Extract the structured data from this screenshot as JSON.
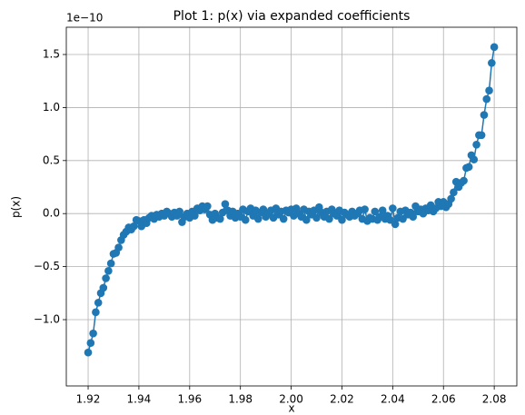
{
  "chart_data": {
    "type": "line",
    "title": "Plot 1: p(x) via expanded coefficients",
    "offset_label": "1e−10",
    "xlabel": "x",
    "ylabel": "p(x)",
    "x": [
      1.92,
      1.921,
      1.922,
      1.923,
      1.924,
      1.925,
      1.926,
      1.927,
      1.928,
      1.929,
      1.93,
      1.931,
      1.932,
      1.933,
      1.934,
      1.935,
      1.936,
      1.937,
      1.938,
      1.939,
      1.94,
      1.941,
      1.942,
      1.943,
      1.944,
      1.945,
      1.946,
      1.947,
      1.948,
      1.949,
      1.95,
      1.951,
      1.952,
      1.953,
      1.954,
      1.955,
      1.956,
      1.957,
      1.958,
      1.959,
      1.96,
      1.961,
      1.962,
      1.963,
      1.964,
      1.965,
      1.966,
      1.967,
      1.968,
      1.969,
      1.97,
      1.971,
      1.972,
      1.973,
      1.974,
      1.975,
      1.976,
      1.977,
      1.978,
      1.979,
      1.98,
      1.981,
      1.982,
      1.983,
      1.984,
      1.985,
      1.986,
      1.987,
      1.988,
      1.989,
      1.99,
      1.991,
      1.992,
      1.993,
      1.994,
      1.995,
      1.996,
      1.997,
      1.998,
      1.999,
      2.0,
      2.001,
      2.002,
      2.003,
      2.004,
      2.005,
      2.006,
      2.007,
      2.008,
      2.009,
      2.01,
      2.011,
      2.012,
      2.013,
      2.014,
      2.015,
      2.016,
      2.017,
      2.018,
      2.019,
      2.02,
      2.021,
      2.022,
      2.023,
      2.024,
      2.025,
      2.026,
      2.027,
      2.028,
      2.029,
      2.03,
      2.031,
      2.032,
      2.033,
      2.034,
      2.035,
      2.036,
      2.037,
      2.038,
      2.039,
      2.04,
      2.041,
      2.042,
      2.043,
      2.044,
      2.045,
      2.046,
      2.047,
      2.048,
      2.049,
      2.05,
      2.051,
      2.052,
      2.053,
      2.054,
      2.055,
      2.056,
      2.057,
      2.058,
      2.059,
      2.06,
      2.061,
      2.062,
      2.063,
      2.064,
      2.065,
      2.066,
      2.067,
      2.068,
      2.069,
      2.07,
      2.071,
      2.072,
      2.073,
      2.074,
      2.075,
      2.076,
      2.077,
      2.078,
      2.079,
      2.08
    ],
    "series": [
      {
        "name": "p(x)",
        "color": "#1f77b4",
        "values": [
          -1.31,
          -1.22,
          -1.13,
          -0.93,
          -0.84,
          -0.75,
          -0.7,
          -0.61,
          -0.54,
          -0.47,
          -0.38,
          -0.37,
          -0.32,
          -0.25,
          -0.2,
          -0.17,
          -0.13,
          -0.15,
          -0.12,
          -0.06,
          -0.07,
          -0.12,
          -0.06,
          -0.09,
          -0.04,
          -0.02,
          -0.05,
          -0.01,
          -0.03,
          0.0,
          -0.02,
          0.02,
          0.0,
          -0.03,
          0.01,
          -0.02,
          0.02,
          -0.08,
          -0.03,
          0.0,
          -0.04,
          0.02,
          -0.02,
          0.05,
          0.03,
          0.07,
          0.04,
          0.07,
          -0.01,
          -0.06,
          0.0,
          -0.04,
          -0.05,
          0.01,
          0.09,
          0.03,
          -0.02,
          0.02,
          -0.04,
          0.0,
          -0.03,
          0.04,
          -0.06,
          0.02,
          0.05,
          -0.02,
          0.03,
          -0.05,
          0.01,
          0.04,
          -0.03,
          0.0,
          0.03,
          -0.04,
          0.05,
          -0.01,
          0.02,
          -0.05,
          0.03,
          0.01,
          0.04,
          -0.02,
          0.05,
          0.0,
          -0.03,
          0.04,
          -0.06,
          0.02,
          -0.01,
          0.03,
          -0.04,
          0.06,
          0.01,
          -0.03,
          0.02,
          -0.05,
          0.04,
          0.0,
          -0.02,
          0.03,
          -0.06,
          0.01,
          -0.01,
          -0.03,
          0.02,
          -0.02,
          0.0,
          0.03,
          -0.05,
          0.04,
          -0.07,
          -0.04,
          -0.05,
          0.02,
          -0.06,
          -0.03,
          0.03,
          -0.05,
          -0.02,
          -0.06,
          0.05,
          -0.1,
          -0.04,
          0.02,
          -0.05,
          0.03,
          -0.01,
          0.01,
          -0.03,
          0.07,
          0.02,
          0.04,
          0.0,
          0.05,
          0.03,
          0.08,
          0.02,
          0.05,
          0.11,
          0.07,
          0.11,
          0.06,
          0.09,
          0.14,
          0.2,
          0.3,
          0.25,
          0.29,
          0.31,
          0.43,
          0.44,
          0.55,
          0.51,
          0.65,
          0.74,
          0.74,
          0.93,
          1.08,
          1.16,
          1.42,
          1.57
        ]
      }
    ],
    "xlim": [
      1.9114,
      2.0889
    ],
    "xticks": [
      1.92,
      1.94,
      1.96,
      1.98,
      {
        "value": 2,
        "label": "2.00"
      },
      2.02,
      2.04,
      2.06,
      2.08
    ],
    "ylim": [
      -1.625,
      1.757
    ],
    "yticks": [
      {
        "value": -1,
        "label": "−1.0"
      },
      {
        "value": -0.5,
        "label": "−0.5"
      },
      {
        "value": 0,
        "label": "0.0"
      },
      0.5,
      {
        "value": 1,
        "label": "1.0"
      },
      1.5
    ],
    "grid": true
  }
}
